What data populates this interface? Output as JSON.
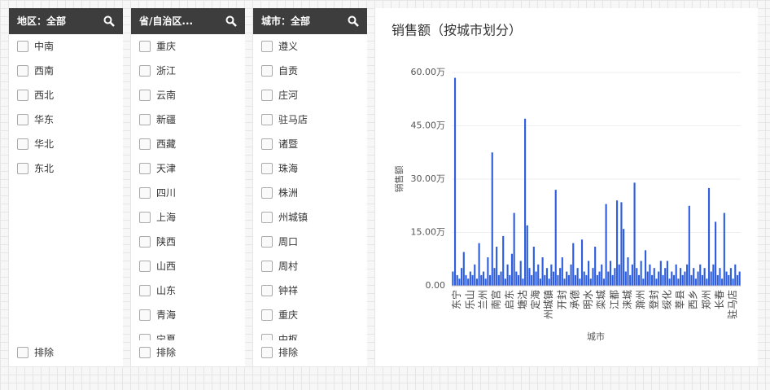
{
  "filters": [
    {
      "title": "地区：全部",
      "items": [
        "中南",
        "西南",
        "西北",
        "华东",
        "华北",
        "东北"
      ],
      "exclude": "排除"
    },
    {
      "title": "省/自治区...",
      "items": [
        "重庆",
        "浙江",
        "云南",
        "新疆",
        "西藏",
        "天津",
        "四川",
        "上海",
        "陕西",
        "山西",
        "山东",
        "青海",
        "宁夏"
      ],
      "exclude": "排除"
    },
    {
      "title": "城市：全部",
      "items": [
        "遵义",
        "自贡",
        "庄河",
        "驻马店",
        "诸暨",
        "珠海",
        "株洲",
        "州城镇",
        "周口",
        "周村",
        "钟祥",
        "重庆",
        "中枢"
      ],
      "exclude": "排除"
    }
  ],
  "chart_data": {
    "type": "bar",
    "title": "销售额（按城市划分）",
    "x_label": "城市",
    "y_label": "销售额",
    "color": "#2f5fe0",
    "grid": true,
    "ylim": [
      0,
      60
    ],
    "yticks": [
      {
        "value": 0,
        "label": "0.00"
      },
      {
        "value": 15,
        "label": "15.00万"
      },
      {
        "value": 30,
        "label": "30.00万"
      },
      {
        "value": 45,
        "label": "45.00万"
      },
      {
        "value": 60,
        "label": "60.00万"
      }
    ],
    "categories": [
      null,
      null,
      "东宁",
      null,
      null,
      null,
      null,
      null,
      "乐山",
      null,
      null,
      null,
      null,
      null,
      "兰州",
      null,
      null,
      null,
      null,
      null,
      "南宫",
      null,
      null,
      null,
      null,
      null,
      "启东",
      null,
      null,
      null,
      null,
      null,
      "塘沽",
      null,
      null,
      null,
      null,
      null,
      "定海",
      null,
      null,
      null,
      null,
      null,
      "州城镇",
      null,
      null,
      null,
      null,
      null,
      "开封",
      null,
      null,
      null,
      null,
      null,
      "承德",
      null,
      null,
      null,
      null,
      null,
      "明水",
      null,
      null,
      null,
      null,
      null,
      "栾城",
      null,
      null,
      null,
      null,
      null,
      "江都",
      null,
      null,
      null,
      null,
      null,
      "涞城",
      null,
      null,
      null,
      null,
      null,
      "滁州",
      null,
      null,
      null,
      null,
      null,
      "登封",
      null,
      null,
      null,
      null,
      null,
      "绥化",
      null,
      null,
      null,
      null,
      null,
      "莘县",
      null,
      null,
      null,
      null,
      null,
      "西乡",
      null,
      null,
      null,
      null,
      null,
      "郑州",
      null,
      null,
      null,
      null,
      null,
      "长春",
      null,
      null,
      null,
      null,
      null,
      "驻马店",
      null,
      null,
      null
    ],
    "values": [
      4,
      58.5,
      3,
      2,
      5,
      9.5,
      3,
      2,
      4,
      3,
      6,
      2,
      12,
      3,
      4,
      2,
      8,
      3,
      37.5,
      5,
      11,
      3,
      4,
      14,
      2,
      6,
      3,
      9,
      20.5,
      4,
      3,
      7,
      2,
      47,
      17,
      5,
      3,
      11,
      4,
      6,
      2,
      8,
      3,
      5,
      2,
      6,
      4,
      27,
      3,
      5,
      8,
      2,
      4,
      3,
      6,
      12,
      3,
      5,
      2,
      13,
      4,
      3,
      7,
      2,
      5,
      11,
      3,
      4,
      6,
      2,
      23,
      4,
      7,
      3,
      5,
      24,
      6,
      23.5,
      16,
      4,
      8,
      3,
      6,
      29,
      5,
      3,
      7,
      2,
      10,
      4,
      6,
      3,
      5,
      2,
      4,
      7,
      3,
      5,
      7,
      2,
      4,
      3,
      6,
      2,
      5,
      3,
      4,
      6,
      22.5,
      3,
      5,
      2,
      4,
      6,
      3,
      5,
      2,
      27.5,
      4,
      6,
      18,
      3,
      5,
      2,
      20.5,
      4,
      3,
      5,
      2,
      6,
      3,
      4
    ]
  }
}
